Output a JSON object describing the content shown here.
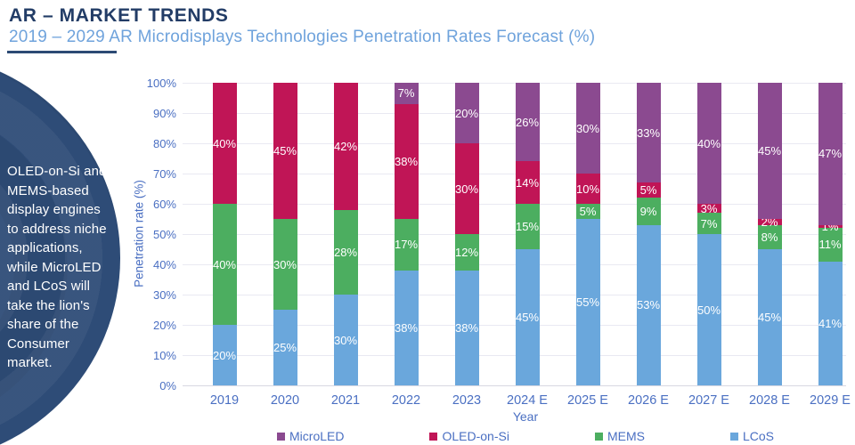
{
  "header": {
    "title": "AR – MARKET TRENDS",
    "subtitle": "2019 – 2029 AR Microdisplays Technologies Penetration Rates Forecast (%)"
  },
  "annotation": {
    "text": "OLED-on-Si and MEMS-based display engines to address niche applications, while MicroLED and LCoS will take the lion's share of the Consumer market."
  },
  "chart_data": {
    "type": "bar",
    "stacked": true,
    "categories": [
      "2019",
      "2020",
      "2021",
      "2022",
      "2023",
      "2024 E",
      "2025 E",
      "2026 E",
      "2027 E",
      "2028 E",
      "2029 E"
    ],
    "series": [
      {
        "name": "LCoS",
        "color": "#6AA7DC",
        "values": [
          20,
          25,
          30,
          38,
          38,
          45,
          55,
          53,
          50,
          45,
          41
        ]
      },
      {
        "name": "MEMS",
        "color": "#4CAE60",
        "values": [
          40,
          30,
          28,
          17,
          12,
          15,
          5,
          9,
          7,
          8,
          11
        ]
      },
      {
        "name": "OLED-on-Si",
        "color": "#C01556",
        "values": [
          40,
          45,
          42,
          38,
          30,
          14,
          10,
          5,
          3,
          2,
          1
        ]
      },
      {
        "name": "MicroLED",
        "color": "#8B4A90",
        "values": [
          0,
          0,
          0,
          7,
          20,
          26,
          30,
          33,
          40,
          45,
          47
        ]
      }
    ],
    "legend": [
      "MicroLED",
      "OLED-on-Si",
      "MEMS",
      "LCoS"
    ],
    "legend_position": "bottom",
    "xlabel": "Year",
    "ylabel": "Penetration rate (%)",
    "ylim": [
      0,
      100
    ],
    "ytick_step": 10,
    "ytick_suffix": "%",
    "grid": true,
    "data_label_suffix": "%"
  },
  "colors": {
    "title_navy": "#223C66",
    "subtitle_blue": "#6FA3DC",
    "axis_blue": "#4A6FC2",
    "grid_gray": "#E9E9F2",
    "circle_navy": "#2E4C77"
  }
}
